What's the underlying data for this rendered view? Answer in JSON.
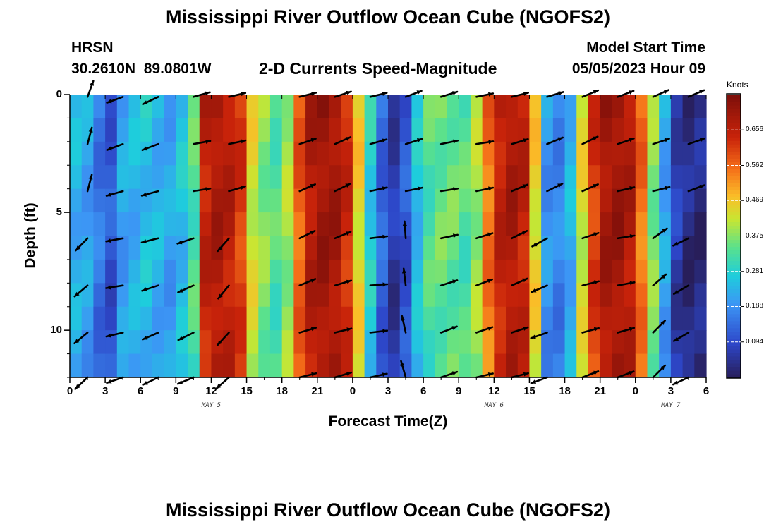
{
  "page": {
    "title": "Mississippi River Outflow Ocean Cube (NGOFS2)",
    "title_repeat": "Mississippi River Outflow Ocean Cube (NGOFS2)",
    "station_code": "HRSN",
    "station_coords": "30.2610N  89.0801W",
    "plot_subtitle": "2-D Currents Speed-Magnitude",
    "model_start_label": "Model Start Time",
    "model_start_value": "05/05/2023 Hour 09"
  },
  "chart_data": {
    "type": "heatmap",
    "title": "2-D Currents Speed-Magnitude",
    "xlabel": "Forecast Time(Z)",
    "ylabel": "Depth (ft)",
    "x_range_hours": [
      0,
      54
    ],
    "y_range_ft": [
      0,
      12
    ],
    "x_tick_labels": [
      "0",
      "3",
      "6",
      "9",
      "12",
      "15",
      "18",
      "21",
      "0",
      "3",
      "6",
      "9",
      "12",
      "15",
      "18",
      "21",
      "0",
      "3",
      "6"
    ],
    "y_tick_labels": [
      "0",
      "5",
      "10"
    ],
    "y_tick_values": [
      0,
      5,
      10
    ],
    "date_labels": [
      {
        "label": "MAY 5",
        "hour": 12
      },
      {
        "label": "MAY 6",
        "hour": 36
      },
      {
        "label": "MAY 7",
        "hour": 51
      }
    ],
    "colorbar": {
      "label": "Knots",
      "min": 0.0,
      "max": 0.75,
      "ticks": [
        "0.656",
        "0.562",
        "0.469",
        "0.375",
        "0.281",
        "0.188",
        "0.094"
      ],
      "tick_values": [
        0.656,
        0.562,
        0.469,
        0.375,
        0.281,
        0.188,
        0.094
      ]
    },
    "speed_profile_knots_by_hour": [
      0.24,
      0.22,
      0.16,
      0.12,
      0.22,
      0.24,
      0.26,
      0.24,
      0.22,
      0.26,
      0.34,
      0.66,
      0.69,
      0.67,
      0.62,
      0.44,
      0.38,
      0.34,
      0.4,
      0.58,
      0.68,
      0.71,
      0.7,
      0.64,
      0.46,
      0.28,
      0.14,
      0.07,
      0.12,
      0.26,
      0.34,
      0.36,
      0.36,
      0.34,
      0.4,
      0.56,
      0.66,
      0.69,
      0.66,
      0.46,
      0.2,
      0.18,
      0.24,
      0.44,
      0.62,
      0.7,
      0.71,
      0.68,
      0.56,
      0.38,
      0.22,
      0.08,
      0.04,
      0.04,
      0.18
    ],
    "vector_hours": [
      1.5,
      4.5,
      7.5,
      10.5,
      13.5,
      19.5,
      22.5,
      25.5,
      28.5,
      31.5,
      34.5,
      37.5,
      40.5,
      43.5,
      46.5,
      49.5,
      52.5
    ],
    "vector_depths_ft": [
      0.1,
      2.1,
      4.1,
      6.1,
      8.1,
      10.1,
      12.0
    ],
    "vector_angles_deg": [
      70,
      195,
      200,
      15,
      18,
      20,
      20,
      10,
      15,
      15,
      15,
      20,
      20,
      20,
      15,
      20,
      25
    ],
    "vector_deep_angles_deg": [
      225,
      195,
      200,
      200,
      225,
      20,
      20,
      10,
      100,
      15,
      15,
      20,
      205,
      20,
      15,
      40,
      205
    ]
  }
}
